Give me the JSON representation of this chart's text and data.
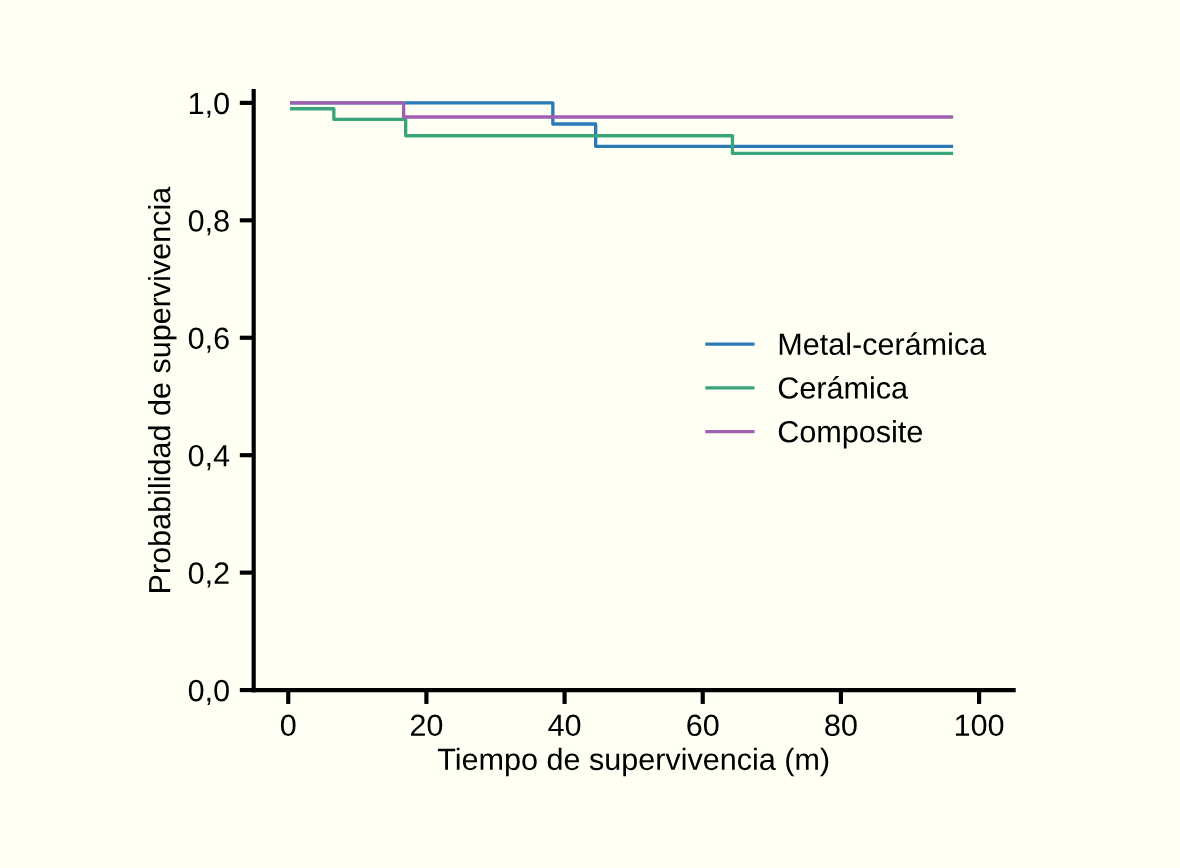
{
  "chart_data": {
    "type": "step",
    "xlabel": "Tiempo de supervivencia (m)",
    "ylabel": "Probabilidad de supervivencia",
    "series": [
      {
        "name": "Metal-cerámica",
        "color": "#2a7ab8",
        "x": [
          0.5,
          38.3,
          44.5,
          96
        ],
        "values": [
          1.0,
          0.964,
          0.926,
          0.926
        ]
      },
      {
        "name": "Cerámica",
        "color": "#3aa57a",
        "x": [
          0.5,
          6.6,
          17,
          64.3,
          96
        ],
        "values": [
          0.99,
          0.972,
          0.944,
          0.914,
          0.914
        ]
      },
      {
        "name": "Composite",
        "color": "#a060b0",
        "x": [
          0.5,
          16.7,
          96
        ],
        "values": [
          1.0,
          0.976,
          0.976
        ]
      }
    ],
    "xlim": [
      -5,
      105
    ],
    "xticks": [
      0,
      20,
      40,
      60,
      80,
      100
    ],
    "ylim": [
      0,
      1.02
    ],
    "yticks": [
      {
        "value": 0,
        "label": "0,0"
      },
      {
        "value": 0.2,
        "label": "0,2"
      },
      {
        "value": 0.4,
        "label": "0,4"
      },
      {
        "value": 0.6,
        "label": "0,6"
      },
      {
        "value": 0.8,
        "label": "0,8"
      },
      {
        "value": 1.0,
        "label": "1,0"
      }
    ],
    "grid": false,
    "legend": "center right"
  }
}
